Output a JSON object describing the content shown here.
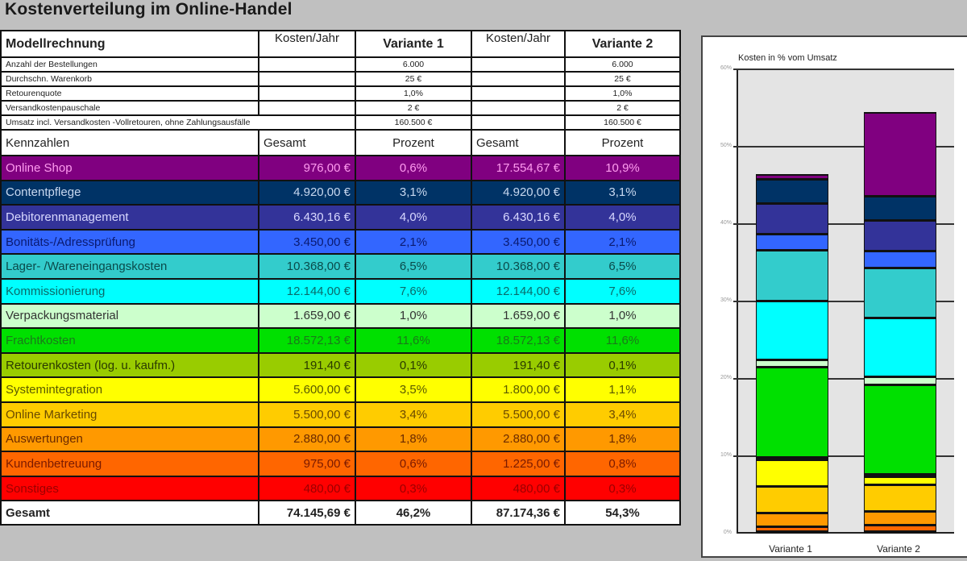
{
  "title": "Kostenverteilung im Online-Handel",
  "table": {
    "header": {
      "col0": "Modellrechnung",
      "col1": "Kosten/Jahr",
      "col2": "Variante 1",
      "col3": "Kosten/Jahr",
      "col4": "Variante 2"
    },
    "info": [
      {
        "label": "Anzahl der Bestellungen",
        "v1": "6.000",
        "v2": "6.000"
      },
      {
        "label": "Durchschn. Warenkorb",
        "v1": "25 €",
        "v2": "25 €"
      },
      {
        "label": "Retourenquote",
        "v1": "1,0%",
        "v2": "1,0%"
      },
      {
        "label": "Versandkostenpauschale",
        "v1": "2 €",
        "v2": "2 €"
      },
      {
        "label": "Umsatz incl. Versandkosten -Vollretouren, ohne Zahlungsausfälle",
        "v1": "160.500 €",
        "v2": "160.500 €"
      }
    ],
    "kennzahlen": {
      "col0": "Kennzahlen",
      "col1": "Gesamt",
      "col2": "Prozent",
      "col3": "Gesamt",
      "col4": "Prozent"
    },
    "rows": [
      {
        "label": "Online Shop",
        "k1": "976,00 €",
        "p1": "0,6%",
        "k2": "17.554,67 €",
        "p2": "10,9%",
        "bg": "#800080",
        "fg": "#ff9cf0"
      },
      {
        "label": "Contentpflege",
        "k1": "4.920,00 €",
        "p1": "3,1%",
        "k2": "4.920,00 €",
        "p2": "3,1%",
        "bg": "#003366",
        "fg": "#c8d8f0"
      },
      {
        "label": "Debitorenmanagement",
        "k1": "6.430,16 €",
        "p1": "4,0%",
        "k2": "6.430,16 €",
        "p2": "4,0%",
        "bg": "#333399",
        "fg": "#d8d8ff"
      },
      {
        "label": "Bonitäts-/Adressprüfung",
        "k1": "3.450,00 €",
        "p1": "2,1%",
        "k2": "3.450,00 €",
        "p2": "2,1%",
        "bg": "#3366ff",
        "fg": "#0a1a70"
      },
      {
        "label": "Lager- /Wareneingangskosten",
        "k1": "10.368,00 €",
        "p1": "6,5%",
        "k2": "10.368,00 €",
        "p2": "6,5%",
        "bg": "#33cccc",
        "fg": "#0a4a4a"
      },
      {
        "label": "Kommissionierung",
        "k1": "12.144,00 €",
        "p1": "7,6%",
        "k2": "12.144,00 €",
        "p2": "7,6%",
        "bg": "#00ffff",
        "fg": "#0a6a6a"
      },
      {
        "label": "Verpackungsmaterial",
        "k1": "1.659,00 €",
        "p1": "1,0%",
        "k2": "1.659,00 €",
        "p2": "1,0%",
        "bg": "#ccffcc",
        "fg": "#333333"
      },
      {
        "label": "Frachtkosten",
        "k1": "18.572,13 €",
        "p1": "11,6%",
        "k2": "18.572,13 €",
        "p2": "11,6%",
        "bg": "#00e000",
        "fg": "#1a7a1a"
      },
      {
        "label": "Retourenkosten (log. u. kaufm.)",
        "k1": "191,40 €",
        "p1": "0,1%",
        "k2": "191,40 €",
        "p2": "0,1%",
        "bg": "#99cc00",
        "fg": "#2a3a00"
      },
      {
        "label": "Systemintegration",
        "k1": "5.600,00 €",
        "p1": "3,5%",
        "k2": "1.800,00 €",
        "p2": "1,1%",
        "bg": "#ffff00",
        "fg": "#5a5a00"
      },
      {
        "label": "Online Marketing",
        "k1": "5.500,00 €",
        "p1": "3,4%",
        "k2": "5.500,00 €",
        "p2": "3,4%",
        "bg": "#ffcc00",
        "fg": "#6a4a00"
      },
      {
        "label": "Auswertungen",
        "k1": "2.880,00 €",
        "p1": "1,8%",
        "k2": "2.880,00 €",
        "p2": "1,8%",
        "bg": "#ff9900",
        "fg": "#6a2a00"
      },
      {
        "label": "Kundenbetreuung",
        "k1": "975,00 €",
        "p1": "0,6%",
        "k2": "1.225,00 €",
        "p2": "0,8%",
        "bg": "#ff6600",
        "fg": "#7a1a00"
      },
      {
        "label": "Sonstiges",
        "k1": "480,00 €",
        "p1": "0,3%",
        "k2": "480,00 €",
        "p2": "0,3%",
        "bg": "#ff0000",
        "fg": "#9a0000"
      }
    ],
    "total": {
      "label": "Gesamt",
      "k1": "74.145,69 €",
      "p1": "46,2%",
      "k2": "87.174,36 €",
      "p2": "54,3%"
    }
  },
  "chart_data": {
    "type": "bar",
    "stacked": true,
    "title": "Kosten in % vom Umsatz",
    "categories": [
      "Variante 1",
      "Variante 2"
    ],
    "xlabel": "",
    "ylabel": "",
    "ylim": [
      0,
      60
    ],
    "yticks": [
      "0%",
      "10%",
      "20%",
      "30%",
      "40%",
      "50%",
      "60%"
    ],
    "grid": true,
    "legend": false,
    "series": [
      {
        "name": "Sonstiges",
        "color": "#cc0000",
        "values": [
          0.3,
          0.3
        ]
      },
      {
        "name": "Kundenbetreuung",
        "color": "#ff6600",
        "values": [
          0.6,
          0.8
        ]
      },
      {
        "name": "Auswertungen",
        "color": "#ff9900",
        "values": [
          1.8,
          1.8
        ]
      },
      {
        "name": "Online Marketing",
        "color": "#ffcc00",
        "values": [
          3.4,
          3.4
        ]
      },
      {
        "name": "Systemintegration",
        "color": "#ffff00",
        "values": [
          3.5,
          1.1
        ]
      },
      {
        "name": "Retourenkosten (log. u. kaufm.)",
        "color": "#99cc00",
        "values": [
          0.1,
          0.1
        ]
      },
      {
        "name": "Frachtkosten",
        "color": "#00e000",
        "values": [
          11.6,
          11.6
        ]
      },
      {
        "name": "Verpackungsmaterial",
        "color": "#ccffcc",
        "values": [
          1.0,
          1.0
        ]
      },
      {
        "name": "Kommissionierung",
        "color": "#00ffff",
        "values": [
          7.6,
          7.6
        ]
      },
      {
        "name": "Lager- /Wareneingangskosten",
        "color": "#33cccc",
        "values": [
          6.5,
          6.5
        ]
      },
      {
        "name": "Bonitäts-/Adressprüfung",
        "color": "#3366ff",
        "values": [
          2.1,
          2.1
        ]
      },
      {
        "name": "Debitorenmanagement",
        "color": "#333399",
        "values": [
          4.0,
          4.0
        ]
      },
      {
        "name": "Contentpflege",
        "color": "#003366",
        "values": [
          3.1,
          3.1
        ]
      },
      {
        "name": "Online Shop",
        "color": "#800080",
        "values": [
          0.6,
          10.9
        ]
      }
    ]
  }
}
